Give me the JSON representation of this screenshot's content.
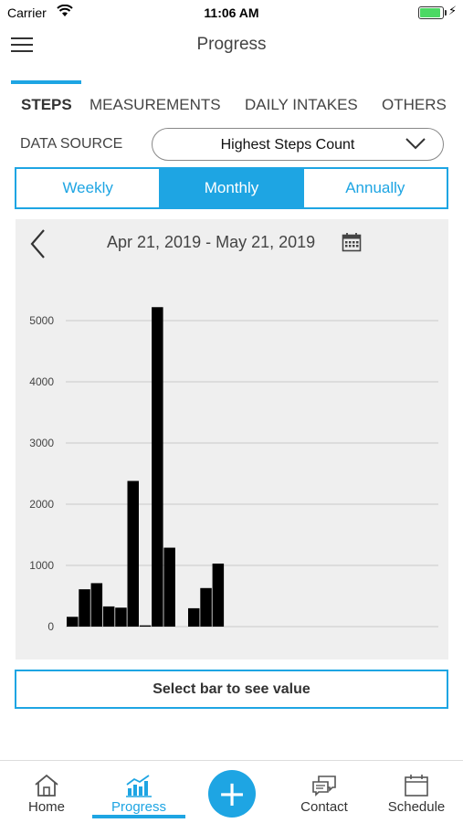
{
  "status_bar": {
    "carrier": "Carrier",
    "time": "11:06 AM"
  },
  "header": {
    "title": "Progress"
  },
  "category_tabs": [
    "STEPS",
    "MEASUREMENTS",
    "DAILY INTAKES",
    "OTHERS"
  ],
  "active_category": "STEPS",
  "data_source": {
    "label": "DATA SOURCE",
    "value": "Highest Steps Count"
  },
  "period_tabs": [
    "Weekly",
    "Monthly",
    "Annually"
  ],
  "active_period": "Monthly",
  "date_range": "Apr 21, 2019 - May 21, 2019",
  "select_hint": "Select bar to see value",
  "bottom_nav": {
    "home": "Home",
    "progress": "Progress",
    "contact": "Contact",
    "schedule": "Schedule"
  },
  "colors": {
    "accent": "#1ea5e3",
    "bar": "#000000",
    "panel": "#efefef"
  },
  "chart_data": {
    "type": "bar",
    "ylim": [
      0,
      5000
    ],
    "yticks": [
      0,
      1000,
      2000,
      3000,
      4000,
      5000
    ],
    "ytick_labels": [
      "0",
      "1000",
      "2000",
      "3000",
      "4000",
      "5000"
    ],
    "grid": true,
    "values": [
      160,
      610,
      710,
      330,
      310,
      2380,
      20,
      5220,
      1290,
      0,
      300,
      630,
      1030
    ]
  }
}
